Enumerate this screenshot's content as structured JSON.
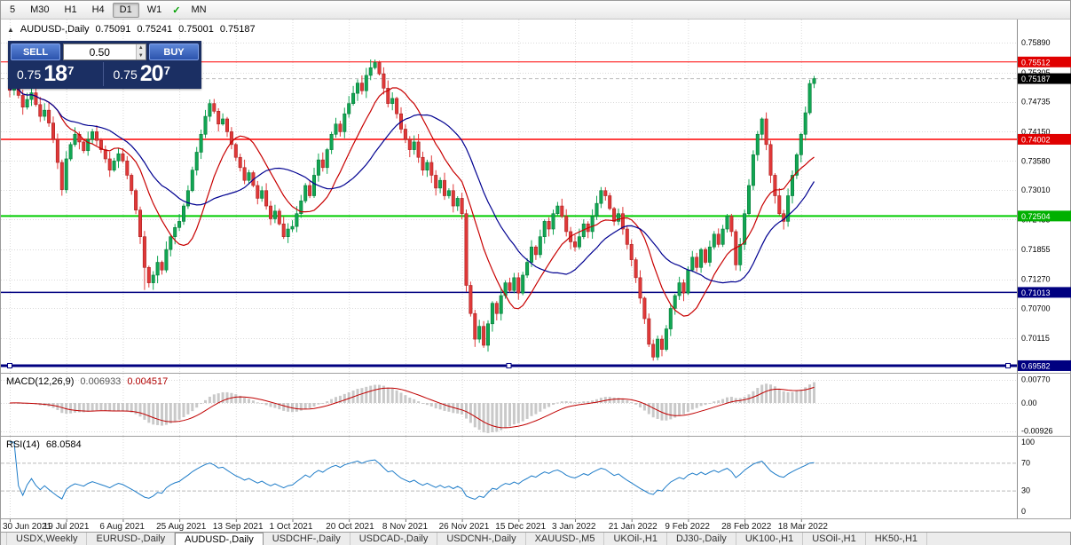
{
  "toolbar": {
    "timeframes": [
      "5",
      "M30",
      "H1",
      "H4",
      "D1",
      "W1",
      "MN"
    ],
    "active_timeframe": "D1",
    "check_icon": "✓"
  },
  "chart_header": {
    "icon": "▲",
    "symbol": "AUDUSD-,Daily",
    "open": "0.75091",
    "high": "0.75241",
    "low": "0.75001",
    "close": "0.75187"
  },
  "trade_widget": {
    "sell_label": "SELL",
    "buy_label": "BUY",
    "volume": "0.50",
    "spin_up": "▲",
    "spin_down": "▼",
    "sell_price": {
      "main": "0.75",
      "pips": "18",
      "frac": "7"
    },
    "buy_price": {
      "main": "0.75",
      "pips": "20",
      "frac": "7"
    }
  },
  "chart_data": {
    "type": "candlestick",
    "title": "AUDUSD-,Daily",
    "ohlc_current": {
      "open": 0.75091,
      "high": 0.75241,
      "low": 0.75001,
      "close": 0.75187
    },
    "current_price": 0.75187,
    "x_tick_labels": [
      "30 Jun 2021",
      "19 Jul 2021",
      "6 Aug 2021",
      "25 Aug 2021",
      "13 Sep 2021",
      "1 Oct 2021",
      "20 Oct 2021",
      "8 Nov 2021",
      "26 Nov 2021",
      "15 Dec 2021",
      "3 Jan 2022",
      "21 Jan 2022",
      "9 Feb 2022",
      "28 Feb 2022",
      "18 Mar 2022"
    ],
    "tick_indices": [
      0,
      13,
      26,
      39,
      52,
      65,
      78,
      91,
      104,
      117,
      130,
      143,
      156,
      169,
      182
    ],
    "first_open": 0.7505,
    "closes": [
      0.7496,
      0.751,
      0.7486,
      0.7463,
      0.7478,
      0.7491,
      0.7468,
      0.7445,
      0.7457,
      0.7432,
      0.74,
      0.7355,
      0.7302,
      0.7362,
      0.739,
      0.741,
      0.7395,
      0.7378,
      0.74,
      0.7415,
      0.7398,
      0.738,
      0.7362,
      0.734,
      0.7358,
      0.7372,
      0.7358,
      0.733,
      0.73,
      0.7262,
      0.721,
      0.715,
      0.712,
      0.7135,
      0.716,
      0.7145,
      0.7185,
      0.721,
      0.7228,
      0.724,
      0.727,
      0.73,
      0.734,
      0.7375,
      0.741,
      0.7445,
      0.747,
      0.7455,
      0.743,
      0.744,
      0.7415,
      0.739,
      0.7365,
      0.7345,
      0.732,
      0.7335,
      0.731,
      0.7285,
      0.73,
      0.727,
      0.7245,
      0.726,
      0.7235,
      0.721,
      0.7225,
      0.723,
      0.7255,
      0.728,
      0.731,
      0.729,
      0.733,
      0.736,
      0.7345,
      0.738,
      0.741,
      0.743,
      0.7415,
      0.745,
      0.747,
      0.749,
      0.751,
      0.7495,
      0.7525,
      0.754,
      0.755,
      0.7528,
      0.75,
      0.747,
      0.748,
      0.745,
      0.742,
      0.74,
      0.738,
      0.7395,
      0.7365,
      0.734,
      0.7355,
      0.733,
      0.7305,
      0.732,
      0.729,
      0.73,
      0.727,
      0.7285,
      0.7255,
      0.7115,
      0.706,
      0.701,
      0.7035,
      0.6998,
      0.704,
      0.708,
      0.706,
      0.7095,
      0.712,
      0.7105,
      0.713,
      0.71,
      0.7135,
      0.716,
      0.719,
      0.7175,
      0.721,
      0.724,
      0.7225,
      0.7255,
      0.727,
      0.725,
      0.722,
      0.72,
      0.719,
      0.721,
      0.7235,
      0.722,
      0.725,
      0.7275,
      0.73,
      0.729,
      0.7265,
      0.724,
      0.7255,
      0.7225,
      0.7195,
      0.7165,
      0.713,
      0.709,
      0.705,
      0.7,
      0.6975,
      0.701,
      0.699,
      0.703,
      0.707,
      0.7095,
      0.712,
      0.71,
      0.7145,
      0.717,
      0.715,
      0.7185,
      0.716,
      0.719,
      0.7215,
      0.7195,
      0.7225,
      0.725,
      0.722,
      0.7155,
      0.7195,
      0.7255,
      0.731,
      0.737,
      0.741,
      0.744,
      0.739,
      0.733,
      0.729,
      0.7255,
      0.724,
      0.729,
      0.733,
      0.737,
      0.741,
      0.7452,
      0.75091,
      0.75187
    ],
    "wick_overrides": {
      "12": [
        null,
        0.729
      ],
      "31": [
        null,
        0.7106
      ],
      "46": [
        0.7478,
        null
      ],
      "84": [
        0.7556,
        null
      ],
      "109": [
        null,
        0.6993
      ],
      "148": [
        null,
        0.6968
      ],
      "173": [
        0.7443,
        null
      ],
      "185": [
        0.75241,
        0.75001
      ]
    },
    "y_axis_labels": [
      "0.75890",
      "0.75305",
      "0.74735",
      "0.74150",
      "0.73580",
      "0.73010",
      "0.72435",
      "0.71855",
      "0.71270",
      "0.70700",
      "0.70115"
    ],
    "axis_tags": [
      {
        "text": "0.75512",
        "bg": "#e00000"
      },
      {
        "text": "0.75187",
        "bg": "#000000"
      },
      {
        "text": "0.74002",
        "bg": "#e00000"
      },
      {
        "text": "0.72504",
        "bg": "#00b000"
      },
      {
        "text": "0.71013",
        "bg": "#000080"
      },
      {
        "text": "0.69582",
        "bg": "#000080"
      }
    ],
    "hlines": [
      {
        "price": 0.75512,
        "color": "#ff0000",
        "width": 1,
        "selected": false
      },
      {
        "price": 0.74002,
        "color": "#ff0000",
        "width": 1.5,
        "selected": false
      },
      {
        "price": 0.72504,
        "color": "#00cc00",
        "width": 2,
        "selected": false
      },
      {
        "price": 0.71013,
        "color": "#000080",
        "width": 1.5,
        "selected": false
      },
      {
        "price": 0.69582,
        "color": "#000080",
        "width": 3,
        "selected": true
      }
    ],
    "ma": [
      {
        "period": 12,
        "color": "#c80000"
      },
      {
        "period": 24,
        "color": "#000090"
      }
    ],
    "up_color": "#11a653",
    "down_color": "#e03838",
    "up_stroke": "#067a37",
    "down_stroke": "#a82222"
  },
  "macd_panel": {
    "label": "MACD(12,26,9)",
    "value_main": "0.006933",
    "value_signal": "0.004517",
    "axis": [
      "0.00770",
      "0.00",
      "-0.00926"
    ],
    "histogram_color": "#c9c9c9",
    "signal_color": "#c00000"
  },
  "rsi_panel": {
    "label": "RSI(14)",
    "value": "68.0584",
    "axis": [
      "100",
      "70",
      "30",
      "0"
    ],
    "levels": [
      70,
      30
    ],
    "line_color": "#1e7cc8"
  },
  "bottom_tabs": {
    "tabs": [
      "USDX,Weekly",
      "EURUSD-,Daily",
      "AUDUSD-,Daily",
      "USDCHF-,Daily",
      "USDCAD-,Daily",
      "USDCNH-,Daily",
      "XAUUSD-,M5",
      "UKOil-,H1",
      "DJ30-,Daily",
      "UK100-,H1",
      "USOil-,H1",
      "HK50-,H1"
    ],
    "active": "AUDUSD-,Daily"
  }
}
